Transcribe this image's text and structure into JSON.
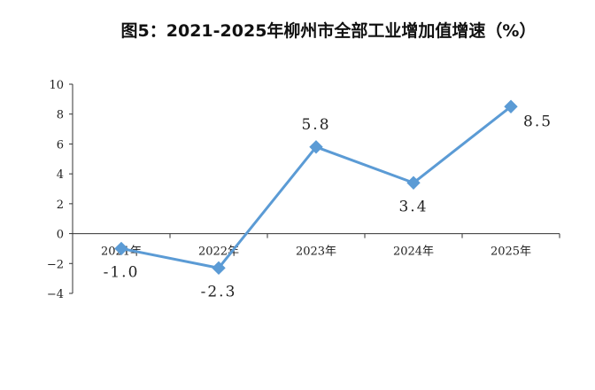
{
  "chart_data": {
    "type": "line",
    "title": "图5：2021-2025年柳州市全部工业增加值增速（%）",
    "categories": [
      "2021年",
      "2022年",
      "2023年",
      "2024年",
      "2025年"
    ],
    "series": [
      {
        "values": [
          -1.0,
          -2.3,
          5.8,
          3.4,
          8.5
        ]
      }
    ],
    "data_labels": [
      "-1.0",
      "-2.3",
      "5.8",
      "3.4",
      "8.5"
    ],
    "y_ticks": [
      "10",
      "8",
      "6",
      "4",
      "2",
      "0",
      "−2",
      "−4"
    ],
    "ylim": [
      -4,
      10
    ],
    "xlabel": "",
    "ylabel": "",
    "grid": false,
    "marker": "diamond",
    "color": "#5b9bd5"
  }
}
